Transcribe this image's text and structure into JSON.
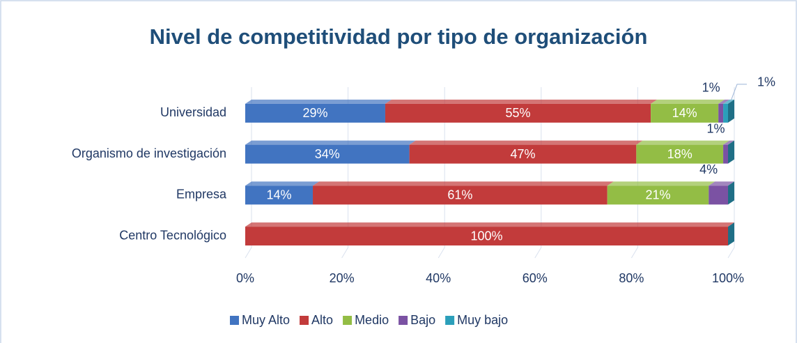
{
  "chart_data": {
    "type": "stacked_barh",
    "title": "Nivel de competitividad por tipo de organización",
    "categories": [
      "Universidad",
      "Organismo de investigación",
      "Empresa",
      "Centro Tecnológico"
    ],
    "series": [
      {
        "name": "Muy Alto",
        "color": "#4174c1",
        "values": [
          29,
          34,
          14,
          0
        ],
        "value_labels": [
          "29%",
          "34%",
          "14%",
          null
        ]
      },
      {
        "name": "Alto",
        "color": "#c23b3b",
        "values": [
          55,
          47,
          61,
          100
        ],
        "value_labels": [
          "55%",
          "47%",
          "61%",
          "100%"
        ]
      },
      {
        "name": "Medio",
        "color": "#93bd45",
        "values": [
          14,
          18,
          21,
          0
        ],
        "value_labels": [
          "14%",
          "18%",
          "21%",
          null
        ]
      },
      {
        "name": "Bajo",
        "color": "#7b52a3",
        "values": [
          1,
          1,
          4,
          0
        ],
        "value_labels": [
          "1%",
          "1%",
          "4%",
          null
        ]
      },
      {
        "name": "Muy bajo",
        "color": "#2b9fba",
        "values": [
          1,
          0,
          0,
          0
        ],
        "value_labels": [
          "1%",
          null,
          null,
          null
        ]
      }
    ],
    "xlim": [
      0,
      100
    ],
    "xticks": [
      {
        "value": 0,
        "label": "0%"
      },
      {
        "value": 20,
        "label": "20%"
      },
      {
        "value": 40,
        "label": "40%"
      },
      {
        "value": 60,
        "label": "60%"
      },
      {
        "value": 80,
        "label": "80%"
      },
      {
        "value": 100,
        "label": "100%"
      }
    ],
    "grid": true,
    "legend": "bottom"
  }
}
